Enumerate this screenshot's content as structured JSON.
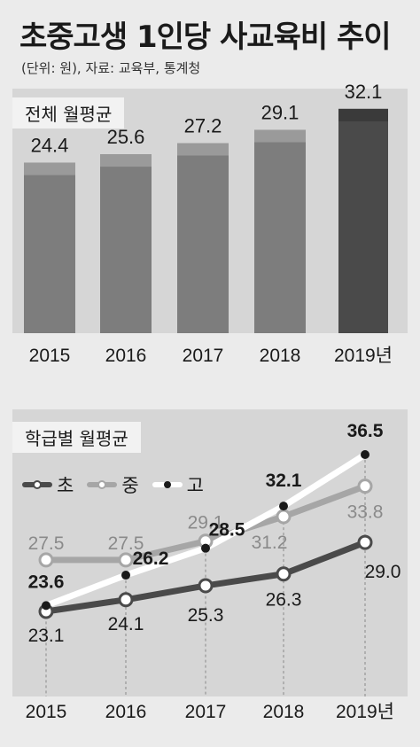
{
  "title": "초중고생 1인당 사교육비 추이",
  "source": "(단위: 원), 자료: 교육부, 통계청",
  "chart_data": [
    {
      "type": "bar",
      "label": "전체 월평균",
      "categories": [
        "2015",
        "2016",
        "2017",
        "2018",
        "2019년"
      ],
      "values": [
        24.4,
        25.6,
        27.2,
        29.1,
        32.1
      ],
      "ylim": [
        0,
        35
      ],
      "grid": false,
      "colors": [
        "#7d7d7d",
        "#7d7d7d",
        "#7d7d7d",
        "#7d7d7d",
        "#4a4a4a"
      ]
    },
    {
      "type": "line",
      "label": "학급별 월평균",
      "categories": [
        "2015",
        "2016",
        "2017",
        "2018",
        "2019년"
      ],
      "series": [
        {
          "name": "초",
          "values": [
            23.1,
            24.1,
            25.3,
            26.3,
            29.0
          ],
          "color": "#4a4a4a"
        },
        {
          "name": "중",
          "values": [
            27.5,
            27.5,
            29.1,
            31.2,
            33.8
          ],
          "color": "#a6a6a6"
        },
        {
          "name": "고",
          "values": [
            23.6,
            26.2,
            28.5,
            32.1,
            36.5
          ],
          "color": "#ffffff"
        }
      ],
      "ylim": [
        20,
        38
      ],
      "legend": "top-left",
      "grid": "dashed vertical lines"
    }
  ]
}
